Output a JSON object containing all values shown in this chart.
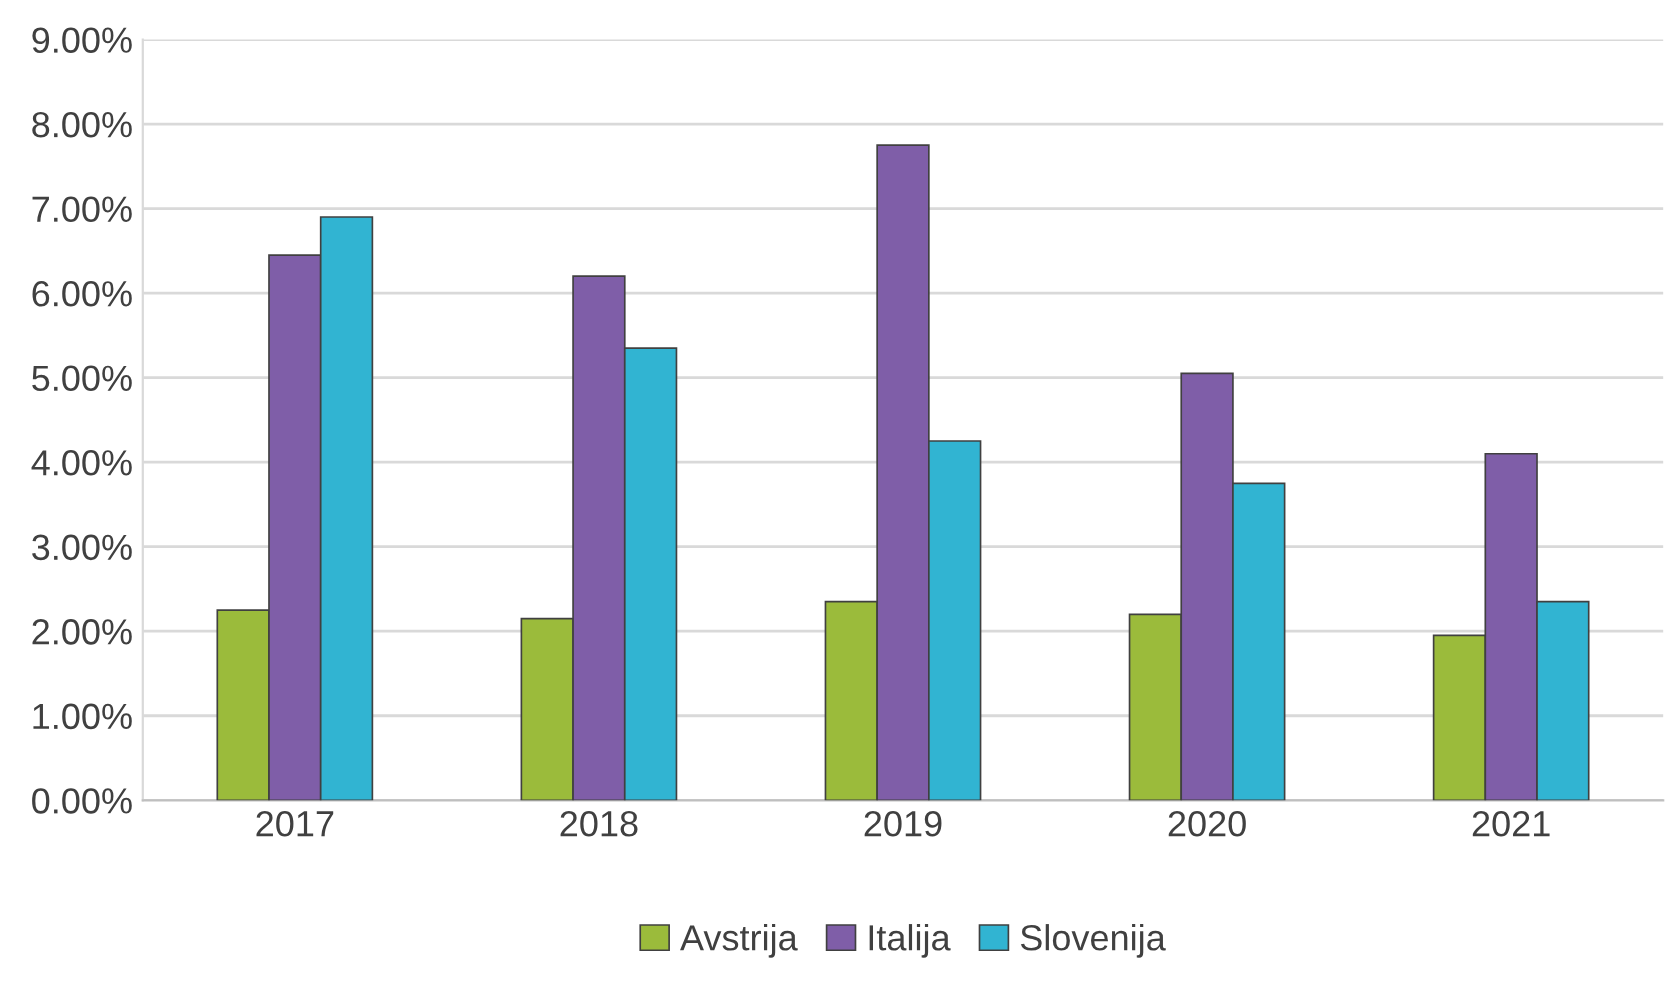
{
  "chart_data": {
    "type": "bar",
    "categories": [
      "2017",
      "2018",
      "2019",
      "2020",
      "2021"
    ],
    "series": [
      {
        "name": "Avstrija",
        "color": "#9bbb3b",
        "values": [
          2.25,
          2.15,
          2.35,
          2.2,
          1.95
        ]
      },
      {
        "name": "Italija",
        "color": "#7f5ea8",
        "values": [
          6.45,
          6.2,
          7.75,
          5.05,
          4.1
        ]
      },
      {
        "name": "Slovenija",
        "color": "#31b4d2",
        "values": [
          6.9,
          5.35,
          4.25,
          3.75,
          2.35
        ]
      }
    ],
    "ylim": [
      0,
      9
    ],
    "yticks": [
      {
        "value": 0,
        "label": "0.00%"
      },
      {
        "value": 1,
        "label": "1.00%"
      },
      {
        "value": 2,
        "label": "2.00%"
      },
      {
        "value": 3,
        "label": "3.00%"
      },
      {
        "value": 4,
        "label": "4.00%"
      },
      {
        "value": 5,
        "label": "5.00%"
      },
      {
        "value": 6,
        "label": "6.00%"
      },
      {
        "value": 7,
        "label": "7.00%"
      },
      {
        "value": 8,
        "label": "8.00%"
      },
      {
        "value": 9,
        "label": "9.00%"
      }
    ],
    "grid": "y",
    "legend": "bottom"
  }
}
